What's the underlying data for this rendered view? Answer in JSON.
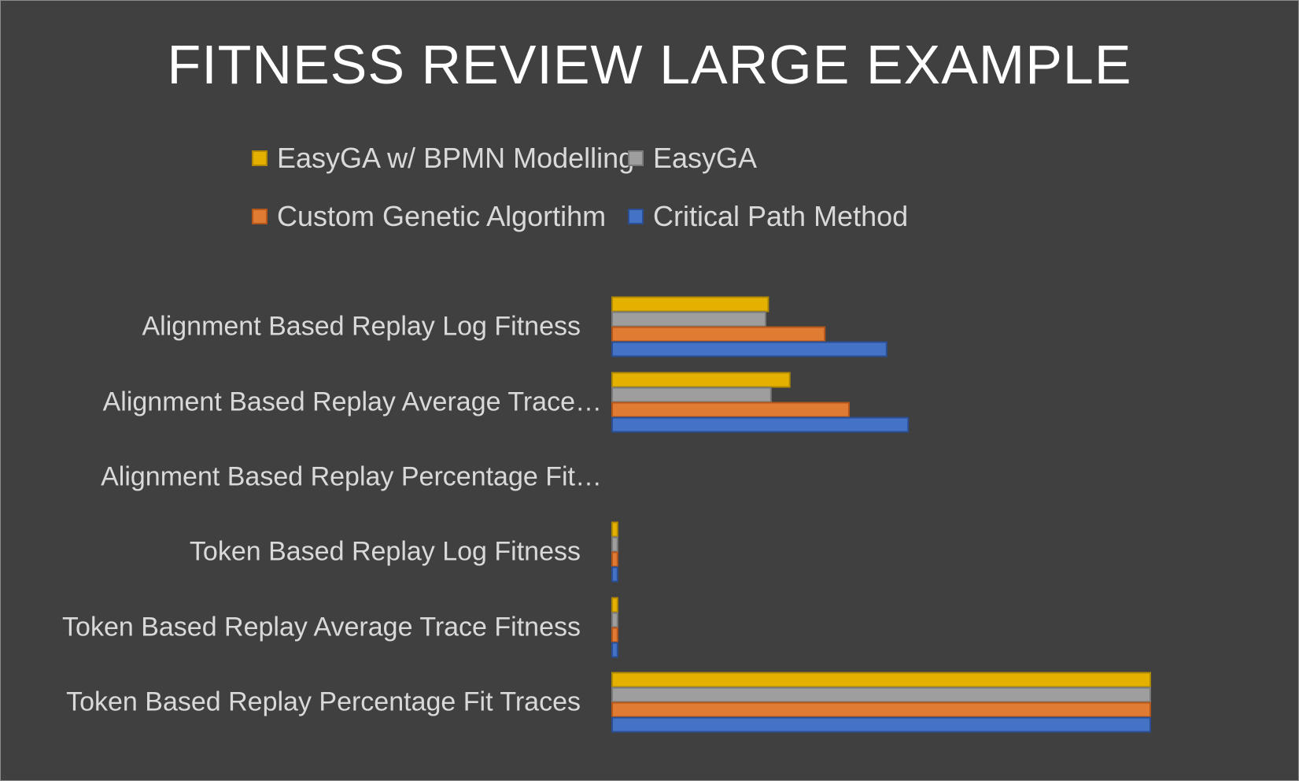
{
  "chart_data": {
    "type": "bar",
    "orientation": "horizontal",
    "title": "FITNESS REVIEW LARGE EXAMPLE",
    "categories": [
      "Alignment Based Replay Log Fitness",
      "Alignment Based Replay Average Trace…",
      "Alignment Based Replay  Percentage Fit…",
      "Token Based Replay Log Fitness",
      "Token Based Replay Average Trace Fitness",
      "Token Based Replay Percentage Fit Traces"
    ],
    "series": [
      {
        "name": "EasyGA w/ BPMN Modelling",
        "color": "#e5b100",
        "border": "#b08900",
        "values": [
          29,
          33,
          0,
          1,
          1,
          100
        ]
      },
      {
        "name": "EasyGA",
        "color": "#9e9e9e",
        "border": "#7a7a7a",
        "values": [
          28.5,
          29.5,
          0,
          1,
          1,
          100
        ]
      },
      {
        "name": "Custom Genetic Algortihm",
        "color": "#e07b34",
        "border": "#b5571a",
        "values": [
          39.5,
          44,
          0,
          1,
          1,
          100
        ]
      },
      {
        "name": "Critical Path Method",
        "color": "#4472c4",
        "border": "#2a4f94",
        "values": [
          51,
          55,
          0,
          1,
          1,
          100
        ]
      }
    ],
    "xlim": [
      0,
      100
    ],
    "grid": false,
    "legend_position": "top"
  }
}
